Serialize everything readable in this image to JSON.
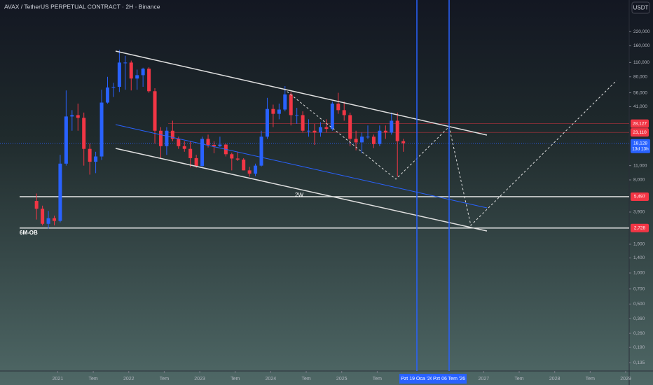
{
  "header": {
    "title": "AVAX / TetherUS PERPETUAL CONTRACT · 2H · Binance",
    "currency": "USDT"
  },
  "chart_data": {
    "type": "candlestick",
    "log_scale": true,
    "colors": {
      "up": "#2962ff",
      "down": "#f23645"
    },
    "x": [
      "2020-09",
      "2020-10",
      "2020-11",
      "2020-12",
      "2021-01",
      "2021-02",
      "2021-03",
      "2021-04",
      "2021-05",
      "2021-06",
      "2021-07",
      "2021-08",
      "2021-09",
      "2021-10",
      "2021-11",
      "2021-12",
      "2022-01",
      "2022-02",
      "2022-03",
      "2022-04",
      "2022-05",
      "2022-06",
      "2022-07",
      "2022-08",
      "2022-09",
      "2022-10",
      "2022-11",
      "2022-12",
      "2023-01",
      "2023-02",
      "2023-03",
      "2023-04",
      "2023-05",
      "2023-06",
      "2023-07",
      "2023-08",
      "2023-09",
      "2023-10",
      "2023-11",
      "2023-12",
      "2024-01",
      "2024-02",
      "2024-03",
      "2024-04",
      "2024-05",
      "2024-06",
      "2024-07",
      "2024-08",
      "2024-09",
      "2024-10",
      "2024-11",
      "2024-12",
      "2025-01",
      "2025-02",
      "2025-03",
      "2025-04",
      "2025-05",
      "2025-06",
      "2025-07",
      "2025-08",
      "2025-09",
      "2025-10",
      "2025-11"
    ],
    "open": [
      5.0,
      4.2,
      3.0,
      3.4,
      3.2,
      11.5,
      33,
      34,
      32,
      16,
      12,
      13.5,
      45,
      63,
      64,
      110,
      110,
      77,
      83,
      96,
      58,
      24,
      17,
      24,
      20,
      17,
      16,
      13,
      10.9,
      20,
      17.5,
      17,
      17.6,
      14.2,
      12.9,
      12.6,
      9.9,
      9.2,
      11,
      21,
      39,
      35,
      38.5,
      54,
      34,
      34,
      24,
      24,
      23,
      26,
      25,
      44,
      38,
      34,
      20,
      18.5,
      21,
      21,
      17.8,
      24,
      23,
      30,
      19
    ],
    "high": [
      5.9,
      4.5,
      4.0,
      3.6,
      14,
      59,
      38,
      44,
      36,
      18,
      15,
      60,
      80,
      70,
      146,
      128,
      115,
      94,
      98,
      99,
      62,
      26,
      26,
      30,
      21,
      19,
      19,
      14,
      21,
      22,
      19,
      21,
      18,
      14.7,
      15,
      13,
      10.7,
      11.5,
      24,
      50,
      43,
      44,
      65,
      57,
      40,
      37,
      31,
      28,
      29,
      31,
      46,
      56,
      46,
      36,
      24,
      23,
      27,
      22,
      27,
      27,
      36,
      36,
      20
    ],
    "low": [
      3.3,
      2.9,
      2.7,
      2.9,
      3.1,
      11,
      24,
      24,
      11,
      9,
      9.3,
      12.5,
      44,
      51,
      57,
      60,
      59,
      60,
      64,
      56,
      18,
      13,
      14,
      19,
      16,
      15,
      10.6,
      10.5,
      10.8,
      16.5,
      14.5,
      16.7,
      13.5,
      9.9,
      12.2,
      9.9,
      8.6,
      8.7,
      10.8,
      20,
      26,
      31,
      37,
      27,
      28,
      23,
      21,
      17.5,
      21,
      23,
      24,
      35,
      30,
      17,
      15.5,
      14.5,
      20,
      16.3,
      17,
      20,
      22,
      8.6,
      15
    ],
    "close": [
      4.2,
      3.0,
      3.4,
      3.2,
      11.5,
      33,
      34,
      32,
      16,
      12,
      13.5,
      45,
      63,
      64,
      110,
      110,
      77,
      83,
      96,
      58,
      24,
      17,
      24,
      20,
      17,
      16,
      13,
      10.9,
      20,
      17.5,
      17,
      17.6,
      14.2,
      12.9,
      12.6,
      9.9,
      9.2,
      11,
      21,
      39,
      35,
      38.5,
      54,
      34,
      34,
      24,
      24,
      23,
      26,
      25,
      44,
      38,
      34,
      20,
      18.5,
      21,
      21,
      17.8,
      24,
      23,
      30,
      19,
      18.128
    ],
    "xlim": [
      "2020-03",
      "2029-01"
    ],
    "ylim": [
      0.112,
      445
    ],
    "yticks": [
      {
        "value": 220,
        "label": "220,000"
      },
      {
        "value": 160,
        "label": "160,000"
      },
      {
        "value": 110,
        "label": "110,000"
      },
      {
        "value": 80,
        "label": "80,000"
      },
      {
        "value": 56,
        "label": "56,000"
      },
      {
        "value": 41,
        "label": "41,000"
      },
      {
        "value": 11,
        "label": "11,000"
      },
      {
        "value": 8,
        "label": "8,000"
      },
      {
        "value": 3.9,
        "label": "3,900"
      },
      {
        "value": 1.9,
        "label": "1,900"
      },
      {
        "value": 1.4,
        "label": "1,400"
      },
      {
        "value": 1,
        "label": "1,000"
      },
      {
        "value": 0.7,
        "label": "0,700"
      },
      {
        "value": 0.5,
        "label": "0,500"
      },
      {
        "value": 0.36,
        "label": "0,360"
      },
      {
        "value": 0.26,
        "label": "0,260"
      },
      {
        "value": 0.19,
        "label": "0,190"
      },
      {
        "value": 0.135,
        "label": "0,135"
      }
    ],
    "xticks": [
      {
        "value": "2021-01",
        "label": "2021"
      },
      {
        "value": "2021-07",
        "label": "Tem"
      },
      {
        "value": "2022-01",
        "label": "2022"
      },
      {
        "value": "2022-07",
        "label": "Tem"
      },
      {
        "value": "2023-01",
        "label": "2023"
      },
      {
        "value": "2023-07",
        "label": "Tem"
      },
      {
        "value": "2024-01",
        "label": "2024"
      },
      {
        "value": "2024-07",
        "label": "Tem"
      },
      {
        "value": "2025-01",
        "label": "2025"
      },
      {
        "value": "2025-07",
        "label": "Tem"
      },
      {
        "value": "2027-01",
        "label": "2027"
      },
      {
        "value": "2027-07",
        "label": "Tem"
      },
      {
        "value": "2028-01",
        "label": "2028"
      },
      {
        "value": "2028-07",
        "label": "Tem"
      },
      {
        "value": "2029-01",
        "label": "2029"
      }
    ],
    "price_tags": [
      {
        "value": 28.127,
        "label": "28,127",
        "color": "#f23645",
        "line": "red"
      },
      {
        "value": 23.11,
        "label": "23,110",
        "color": "#f23645",
        "line": "red"
      },
      {
        "value": 5.497,
        "label": "5,497",
        "color": "#f23645",
        "line": "white"
      },
      {
        "value": 2.728,
        "label": "2,728",
        "color": "#f23645",
        "line": "white"
      }
    ],
    "current_price": {
      "value": 18.128,
      "label": "18,128",
      "countdown": "13d 13h",
      "color": "#2962ff"
    },
    "annotations": [
      "2W",
      "6M-OB"
    ],
    "date_tags": [
      "Pzt 19 Oca '26",
      "Pzt 06 Tem '26"
    ]
  }
}
